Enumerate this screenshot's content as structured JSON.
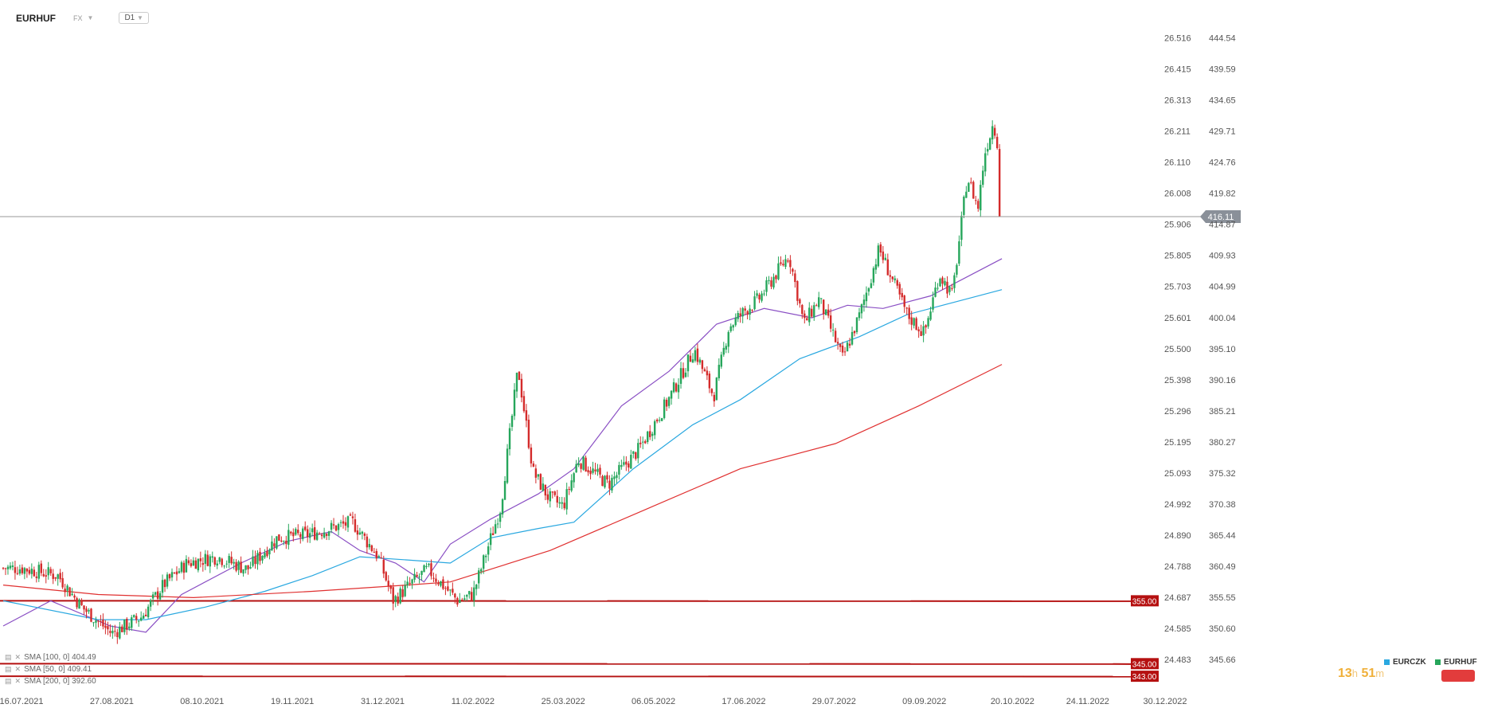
{
  "header": {
    "symbol": "EURHUF",
    "exchange": "FX",
    "timeframe": "D1"
  },
  "indicators": [
    {
      "label": "SMA [100, 0] 404.49"
    },
    {
      "label": "SMA [50, 0] 409.41"
    },
    {
      "label": "SMA [200, 0] 392.60"
    }
  ],
  "legend": [
    {
      "label": "EURCZK",
      "color": "#2aa8e0"
    },
    {
      "label": "EURHUF",
      "color": "#26a65b"
    }
  ],
  "timer": {
    "hours": "13",
    "h_unit": "h",
    "minutes": "51",
    "m_unit": "m"
  },
  "colors": {
    "up": "#26a65b",
    "down": "#d42b2b",
    "sma50": "#8a4fc4",
    "sma100": "#2aa8e0",
    "sma200": "#e03030",
    "level": "#b51010"
  },
  "chart_data": {
    "type": "candlestick",
    "x_axis_dates": [
      "16.07.2021",
      "27.08.2021",
      "08.10.2021",
      "19.11.2021",
      "31.12.2021",
      "11.02.2022",
      "25.03.2022",
      "06.05.2022",
      "17.06.2022",
      "29.07.2022",
      "09.09.2022",
      "20.10.2022",
      "24.11.2022",
      "30.12.2022"
    ],
    "y_axis_right_ticks": [
      444.54,
      439.59,
      434.65,
      429.71,
      424.76,
      419.82,
      414.87,
      409.93,
      404.99,
      400.04,
      395.1,
      390.16,
      385.21,
      380.27,
      375.32,
      370.38,
      365.44,
      360.49,
      355.55,
      350.6,
      345.66
    ],
    "y_axis_left_ticks": [
      26.516,
      26.415,
      26.313,
      26.211,
      26.11,
      26.008,
      25.906,
      25.805,
      25.703,
      25.601,
      25.5,
      25.398,
      25.296,
      25.195,
      25.093,
      24.992,
      24.89,
      24.788,
      24.687,
      24.585,
      24.483
    ],
    "y_range": [
      342.0,
      446.0
    ],
    "last_price": 416.11,
    "horizontal_levels": [
      {
        "value": 355.0,
        "label": "355.00"
      },
      {
        "value": 345.0,
        "label": "345.00"
      },
      {
        "value": 343.0,
        "label": "343.00"
      }
    ],
    "series_close_anchors": [
      {
        "date": "16.07.2021",
        "close": 360.2
      },
      {
        "date": "02.08.2021",
        "close": 359.0
      },
      {
        "date": "13.08.2021",
        "close": 354.0
      },
      {
        "date": "27.08.2021",
        "close": 349.8
      },
      {
        "date": "10.09.2021",
        "close": 352.5
      },
      {
        "date": "20.09.2021",
        "close": 357.5
      },
      {
        "date": "01.10.2021",
        "close": 361.0
      },
      {
        "date": "15.10.2021",
        "close": 362.0
      },
      {
        "date": "29.10.2021",
        "close": 360.0
      },
      {
        "date": "12.11.2021",
        "close": 365.0
      },
      {
        "date": "26.11.2021",
        "close": 365.5
      },
      {
        "date": "17.12.2021",
        "close": 367.5
      },
      {
        "date": "29.12.2021",
        "close": 362.0
      },
      {
        "date": "05.01.2022",
        "close": 355.0
      },
      {
        "date": "14.01.2022",
        "close": 358.0
      },
      {
        "date": "21.01.2022",
        "close": 360.0
      },
      {
        "date": "04.02.2022",
        "close": 355.0
      },
      {
        "date": "11.02.2022",
        "close": 356.0
      },
      {
        "date": "24.02.2022",
        "close": 370.0
      },
      {
        "date": "04.03.2022",
        "close": 392.0
      },
      {
        "date": "11.03.2022",
        "close": 375.5
      },
      {
        "date": "18.03.2022",
        "close": 371.5
      },
      {
        "date": "25.03.2022",
        "close": 370.0
      },
      {
        "date": "01.04.2022",
        "close": 377.5
      },
      {
        "date": "15.04.2022",
        "close": 373.5
      },
      {
        "date": "29.04.2022",
        "close": 379.0
      },
      {
        "date": "13.05.2022",
        "close": 387.0
      },
      {
        "date": "25.05.2022",
        "close": 395.0
      },
      {
        "date": "03.06.2022",
        "close": 387.5
      },
      {
        "date": "10.06.2022",
        "close": 398.5
      },
      {
        "date": "17.06.2022",
        "close": 401.0
      },
      {
        "date": "24.06.2022",
        "close": 403.0
      },
      {
        "date": "08.07.2022",
        "close": 410.0
      },
      {
        "date": "15.07.2022",
        "close": 399.0
      },
      {
        "date": "22.07.2022",
        "close": 403.0
      },
      {
        "date": "02.08.2022",
        "close": 393.5
      },
      {
        "date": "10.08.2022",
        "close": 400.5
      },
      {
        "date": "19.08.2022",
        "close": 411.0
      },
      {
        "date": "01.09.2022",
        "close": 400.5
      },
      {
        "date": "09.09.2022",
        "close": 397.5
      },
      {
        "date": "16.09.2022",
        "close": 407.0
      },
      {
        "date": "22.09.2022",
        "close": 403.5
      },
      {
        "date": "29.09.2022",
        "close": 422.5
      },
      {
        "date": "04.10.2022",
        "close": 417.5
      },
      {
        "date": "07.10.2022",
        "close": 426.0
      },
      {
        "date": "11.10.2022",
        "close": 431.0
      },
      {
        "date": "13.10.2022",
        "close": 428.0
      },
      {
        "date": "14.10.2022",
        "close": 416.11
      }
    ],
    "sma_lines": [
      {
        "name": "SMA [50, 0]",
        "last": 409.41,
        "values": [
          [
            0,
            351.0
          ],
          [
            20,
            355.0
          ],
          [
            45,
            351.0
          ],
          [
            60,
            350.0
          ],
          [
            75,
            356.0
          ],
          [
            100,
            361.0
          ],
          [
            120,
            364.5
          ],
          [
            138,
            366.0
          ],
          [
            150,
            363.0
          ],
          [
            165,
            361.0
          ],
          [
            177,
            358.0
          ],
          [
            188,
            364.0
          ],
          [
            205,
            368.0
          ],
          [
            225,
            372.0
          ],
          [
            240,
            376.0
          ],
          [
            260,
            386.0
          ],
          [
            280,
            391.5
          ],
          [
            300,
            399.0
          ],
          [
            320,
            401.5
          ],
          [
            340,
            400.0
          ],
          [
            355,
            402.0
          ],
          [
            370,
            401.5
          ],
          [
            390,
            403.5
          ],
          [
            420,
            409.41
          ]
        ]
      },
      {
        "name": "SMA [100, 0]",
        "last": 404.49,
        "values": [
          [
            0,
            355.0
          ],
          [
            40,
            352.0
          ],
          [
            60,
            352.0
          ],
          [
            85,
            354.0
          ],
          [
            110,
            356.5
          ],
          [
            130,
            359.0
          ],
          [
            150,
            362.0
          ],
          [
            170,
            361.5
          ],
          [
            188,
            361.0
          ],
          [
            205,
            365.0
          ],
          [
            225,
            366.5
          ],
          [
            240,
            367.5
          ],
          [
            265,
            376.0
          ],
          [
            290,
            383.0
          ],
          [
            310,
            387.0
          ],
          [
            335,
            393.5
          ],
          [
            360,
            397.0
          ],
          [
            380,
            400.5
          ],
          [
            400,
            402.5
          ],
          [
            420,
            404.49
          ]
        ]
      },
      {
        "name": "SMA [200, 0]",
        "last": 392.6,
        "values": [
          [
            0,
            357.5
          ],
          [
            40,
            356.0
          ],
          [
            80,
            355.5
          ],
          [
            130,
            356.5
          ],
          [
            170,
            357.5
          ],
          [
            188,
            358.0
          ],
          [
            230,
            363.0
          ],
          [
            270,
            369.5
          ],
          [
            310,
            376.0
          ],
          [
            350,
            380.0
          ],
          [
            385,
            386.0
          ],
          [
            420,
            392.6
          ]
        ]
      }
    ]
  }
}
